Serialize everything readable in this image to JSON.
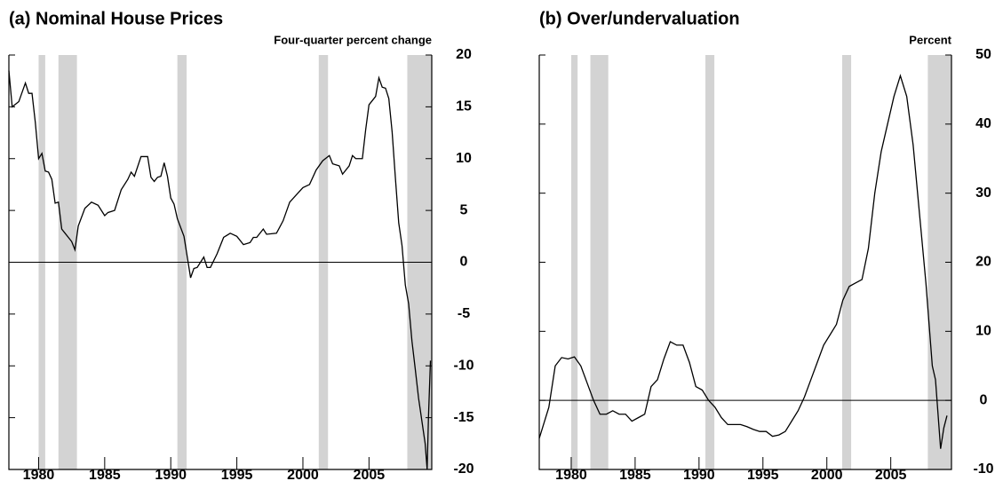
{
  "chart_data": [
    {
      "type": "line",
      "title": "(a) Nominal House Prices",
      "y_axis_label": "Four-quarter percent change",
      "x": [
        1977.75,
        1978.0,
        1978.5,
        1979.0,
        1979.25,
        1979.5,
        1979.75,
        1980.0,
        1980.25,
        1980.5,
        1980.75,
        1981.0,
        1981.25,
        1981.5,
        1981.75,
        1982.0,
        1982.5,
        1982.75,
        1983.0,
        1983.5,
        1984.0,
        1984.5,
        1985.0,
        1985.25,
        1985.75,
        1986.25,
        1986.75,
        1987.0,
        1987.25,
        1987.75,
        1988.25,
        1988.5,
        1988.75,
        1989.0,
        1989.25,
        1989.5,
        1989.75,
        1990.0,
        1990.25,
        1990.5,
        1991.0,
        1991.25,
        1991.5,
        1991.75,
        1992.0,
        1992.25,
        1992.5,
        1992.75,
        1993.0,
        1993.5,
        1994.0,
        1994.5,
        1995.0,
        1995.5,
        1996.0,
        1996.25,
        1996.5,
        1997.0,
        1997.25,
        1998.0,
        1998.5,
        1999.0,
        1999.5,
        2000.0,
        2000.5,
        2001.0,
        2001.5,
        2002.0,
        2002.25,
        2002.75,
        2003.0,
        2003.5,
        2003.75,
        2004.0,
        2004.5,
        2004.75,
        2005.0,
        2005.5,
        2005.75,
        2006.0,
        2006.25,
        2006.5,
        2006.75,
        2007.0,
        2007.25,
        2007.5,
        2007.75,
        2008.0,
        2008.25,
        2008.5,
        2008.75,
        2009.0,
        2009.25,
        2009.4,
        2009.5,
        2009.65
      ],
      "series": [
        {
          "name": "Nominal house prices",
          "color": "#000000",
          "values": [
            18.5,
            15,
            15.5,
            17.3,
            16.3,
            16.3,
            13.5,
            10,
            10.5,
            8.8,
            8.7,
            8,
            5.7,
            5.8,
            3.2,
            2.8,
            2,
            1.2,
            3.5,
            5.2,
            5.8,
            5.5,
            4.5,
            4.8,
            5,
            7,
            8,
            8.7,
            8.3,
            10.2,
            10.2,
            8.2,
            7.8,
            8.2,
            8.3,
            9.6,
            8.3,
            6.2,
            5.6,
            4.2,
            2.5,
            0.5,
            -1.5,
            -0.6,
            -0.5,
            0,
            0.5,
            -0.5,
            -0.5,
            0.8,
            2.4,
            2.8,
            2.5,
            1.7,
            1.9,
            2.4,
            2.4,
            3.2,
            2.7,
            2.8,
            4,
            5.8,
            6.5,
            7.2,
            7.5,
            8.9,
            9.8,
            10.3,
            9.5,
            9.3,
            8.5,
            9.3,
            10.3,
            10,
            10,
            12.8,
            15.2,
            16,
            17.8,
            16.9,
            16.8,
            15.8,
            12.6,
            8.1,
            3.8,
            1.6,
            -2.2,
            -4,
            -7.6,
            -10.3,
            -13.1,
            -15.3,
            -17.5,
            -20,
            -15,
            -9.5
          ]
        }
      ],
      "recessions": [
        [
          1980.0,
          1980.5
        ],
        [
          1981.5,
          1982.9
        ],
        [
          1990.5,
          1991.2
        ],
        [
          2001.2,
          2001.9
        ],
        [
          2007.9,
          2009.75
        ]
      ],
      "recession_color": "#d3d3d3",
      "xlim": [
        1977.75,
        2009.75
      ],
      "xticks": [
        1980,
        1985,
        1990,
        1995,
        2000,
        2005
      ],
      "ylim": [
        -20,
        20
      ],
      "yticks": [
        20,
        15,
        10,
        5,
        0,
        -5,
        -10,
        -15,
        -20
      ]
    },
    {
      "type": "line",
      "title": "(b) Over/undervaluation",
      "y_axis_label": "Percent",
      "x": [
        1977.5,
        1977.75,
        1978.25,
        1978.75,
        1979.25,
        1979.75,
        1980.25,
        1980.75,
        1981.25,
        1981.75,
        1982.25,
        1982.75,
        1983.25,
        1983.75,
        1984.25,
        1984.75,
        1985.25,
        1985.75,
        1986.25,
        1986.75,
        1987.25,
        1987.75,
        1988.25,
        1988.75,
        1989.25,
        1989.75,
        1990.25,
        1990.75,
        1991.25,
        1991.75,
        1992.25,
        1992.75,
        1993.25,
        1993.75,
        1994.25,
        1994.75,
        1995.25,
        1995.75,
        1996.25,
        1996.75,
        1997.25,
        1997.75,
        1998.25,
        1998.75,
        1999.25,
        1999.75,
        2000.25,
        2000.75,
        2001.25,
        2001.75,
        2002.25,
        2002.75,
        2003.25,
        2003.75,
        2004.25,
        2004.75,
        2005.25,
        2005.75,
        2006.25,
        2006.75,
        2007.25,
        2007.75,
        2008.25,
        2008.5,
        2008.9,
        2009.15,
        2009.4
      ],
      "series": [
        {
          "name": "Over/undervaluation",
          "color": "#000000",
          "values": [
            -5.5,
            -4,
            -1,
            5,
            6.2,
            6,
            6.3,
            5,
            2.5,
            0,
            -2,
            -2,
            -1.5,
            -2,
            -2,
            -3,
            -2.5,
            -2,
            2,
            3,
            6,
            8.5,
            8,
            8,
            5.5,
            2,
            1.5,
            0,
            -1,
            -2.5,
            -3.5,
            -3.5,
            -3.5,
            -3.8,
            -4.2,
            -4.5,
            -4.5,
            -5.2,
            -5,
            -4.5,
            -3,
            -1.5,
            0.5,
            3,
            5.5,
            8,
            9.5,
            11,
            14.5,
            16.5,
            17,
            17.5,
            22,
            30,
            36,
            40,
            44,
            47,
            44,
            37,
            27,
            17,
            5,
            3,
            -7,
            -4,
            -2.2
          ]
        }
      ],
      "recessions": [
        [
          1980.0,
          1980.5
        ],
        [
          1981.5,
          1982.9
        ],
        [
          1990.5,
          1991.2
        ],
        [
          2001.2,
          2001.9
        ],
        [
          2007.9,
          2009.75
        ]
      ],
      "recession_color": "#d3d3d3",
      "xlim": [
        1977.5,
        2009.75
      ],
      "xticks": [
        1980,
        1985,
        1990,
        1995,
        2000,
        2005
      ],
      "ylim": [
        -10,
        50
      ],
      "yticks": [
        50,
        40,
        30,
        20,
        10,
        0,
        -10
      ]
    }
  ]
}
